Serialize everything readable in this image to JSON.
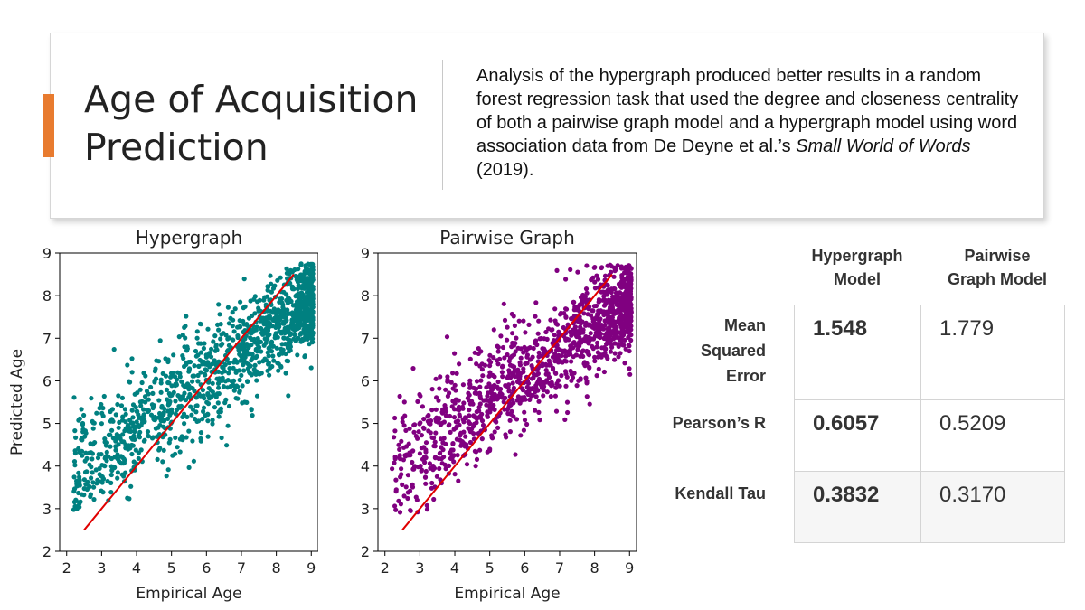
{
  "slide": {
    "title_line1": "Age of Acquisition",
    "title_line2": "Prediction",
    "description_part1": "Analysis of the hypergraph produced better results in a random forest regression task that used the degree and closeness centrality of both a pairwise graph model and a hypergraph model using word association data from De Deyne et al.’s ",
    "description_italic": "Small World of Words",
    "description_part2": " (2019).",
    "accent_color": "#e87b2f"
  },
  "chart_data": [
    {
      "type": "scatter",
      "title": "Hypergraph",
      "xlabel": "Empirical Age",
      "ylabel": "Predicted Age",
      "xlim": [
        1.8,
        9.2
      ],
      "ylim": [
        2,
        9
      ],
      "xticks": [
        "2",
        "3",
        "4",
        "5",
        "6",
        "7",
        "8",
        "9"
      ],
      "yticks": [
        "2",
        "3",
        "4",
        "5",
        "6",
        "7",
        "8",
        "9"
      ],
      "point_color": "#008080",
      "fit_line": {
        "x": [
          2.5,
          8.5
        ],
        "y": [
          2.5,
          8.5
        ],
        "color": "#e00000"
      },
      "point_count": 1300,
      "seed": 7
    },
    {
      "type": "scatter",
      "title": "Pairwise Graph",
      "xlabel": "Empirical Age",
      "ylabel": "",
      "xlim": [
        1.8,
        9.2
      ],
      "ylim": [
        2,
        9
      ],
      "xticks": [
        "2",
        "3",
        "4",
        "5",
        "6",
        "7",
        "8",
        "9"
      ],
      "yticks": [
        "2",
        "3",
        "4",
        "5",
        "6",
        "7",
        "8",
        "9"
      ],
      "point_color": "#800080",
      "fit_line": {
        "x": [
          2.5,
          8.5
        ],
        "y": [
          2.5,
          8.5
        ],
        "color": "#e00000"
      },
      "point_count": 1300,
      "seed": 19
    }
  ],
  "table": {
    "headers": [
      {
        "line1": "Hypergraph",
        "line2": "Model"
      },
      {
        "line1": "Pairwise",
        "line2": "Graph Model"
      }
    ],
    "rows": [
      {
        "label_lines": [
          "Mean",
          "Squared",
          "Error"
        ],
        "hyper": "1.548",
        "pair": "1.779"
      },
      {
        "label_lines": [
          "Pearson’s R"
        ],
        "hyper": "0.6057",
        "pair": "0.5209"
      },
      {
        "label_lines": [
          "Kendall Tau"
        ],
        "hyper": "0.3832",
        "pair": "0.3170"
      }
    ]
  }
}
